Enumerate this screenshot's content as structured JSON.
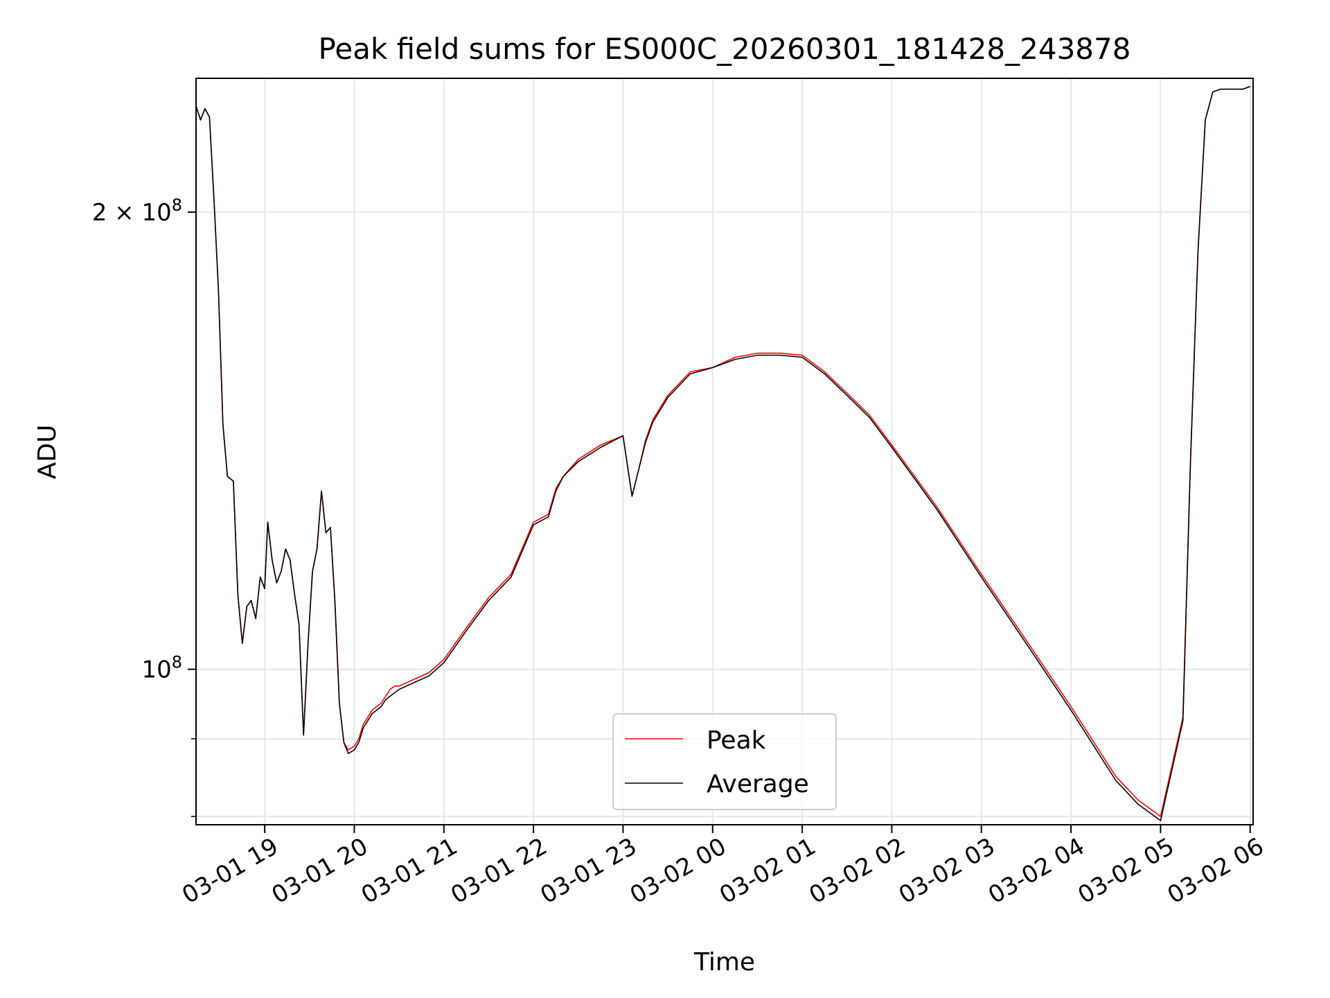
{
  "chart_data": {
    "type": "line",
    "title": "Peak field sums for ES000C_20260301_181428_243878",
    "xlabel": "Time",
    "ylabel": "ADU",
    "y_scale": "log",
    "ylim": [
      79000000,
      245000000
    ],
    "xlim": [
      "03-01 18:14",
      "03-02 06:02"
    ],
    "grid": true,
    "legend_position": "lower center",
    "x_ticks": [
      "03-01 19",
      "03-01 20",
      "03-01 21",
      "03-01 22",
      "03-01 23",
      "03-02 00",
      "03-02 01",
      "03-02 02",
      "03-02 03",
      "03-02 04",
      "03-02 05",
      "03-02 06"
    ],
    "y_ticks": [
      {
        "value": 200000000,
        "label_base": "2 × 10",
        "label_exp": "8"
      },
      {
        "value": 100000000,
        "label_base": "10",
        "label_exp": "8"
      }
    ],
    "y_minor_ticks": [
      80000000,
      90000000
    ],
    "series": [
      {
        "name": "Peak",
        "color": "#ff0000",
        "x": [
          "03-01 18:14",
          "03-01 18:17",
          "03-01 18:20",
          "03-01 18:23",
          "03-01 18:26",
          "03-01 18:29",
          "03-01 18:32",
          "03-01 18:35",
          "03-01 18:39",
          "03-01 18:42",
          "03-01 18:45",
          "03-01 18:48",
          "03-01 18:51",
          "03-01 18:54",
          "03-01 18:57",
          "03-01 19:00",
          "03-01 19:02",
          "03-01 19:05",
          "03-01 19:08",
          "03-01 19:11",
          "03-01 19:14",
          "03-01 19:17",
          "03-01 19:20",
          "03-01 19:23",
          "03-01 19:26",
          "03-01 19:29",
          "03-01 19:32",
          "03-01 19:35",
          "03-01 19:38",
          "03-01 19:41",
          "03-01 19:44",
          "03-01 19:47",
          "03-01 19:50",
          "03-01 19:53",
          "03-01 19:56",
          "03-01 20:00",
          "03-01 20:03",
          "03-01 20:06",
          "03-01 20:09",
          "03-01 20:12",
          "03-01 20:15",
          "03-01 20:18",
          "03-01 20:21",
          "03-01 20:24",
          "03-01 20:27",
          "03-01 20:30",
          "03-01 20:40",
          "03-01 20:50",
          "03-01 21:00",
          "03-01 21:15",
          "03-01 21:30",
          "03-01 21:45",
          "03-01 22:00",
          "03-01 22:10",
          "03-01 22:15",
          "03-01 22:20",
          "03-01 22:30",
          "03-01 22:45",
          "03-01 23:00",
          "03-01 23:06",
          "03-01 23:11",
          "03-01 23:15",
          "03-01 23:20",
          "03-01 23:30",
          "03-01 23:45",
          "03-02 00:00",
          "03-02 00:15",
          "03-02 00:30",
          "03-02 00:45",
          "03-02 01:00",
          "03-02 01:15",
          "03-02 01:30",
          "03-02 01:45",
          "03-02 02:00",
          "03-02 02:30",
          "03-02 03:00",
          "03-02 03:30",
          "03-02 04:00",
          "03-02 04:30",
          "03-02 04:45",
          "03-02 05:00",
          "03-02 05:15",
          "03-02 05:20",
          "03-02 05:25",
          "03-02 05:30",
          "03-02 05:35",
          "03-02 05:40",
          "03-02 05:45",
          "03-02 05:50",
          "03-02 05:55",
          "03-02 06:00"
        ],
        "y": [
          235000000,
          230000000,
          234000000,
          231000000,
          204000000,
          178000000,
          145000000,
          134000000,
          133000000,
          112000000,
          104000000,
          110000000,
          111000000,
          108000000,
          115000000,
          113000000,
          125000000,
          118000000,
          114000000,
          116000000,
          120000000,
          118000000,
          112000000,
          107000000,
          90500000,
          104000000,
          116000000,
          120000000,
          131000000,
          123000000,
          124000000,
          111000000,
          95000000,
          89500000,
          88500000,
          89000000,
          90000000,
          92000000,
          93000000,
          94000000,
          94500000,
          95000000,
          96000000,
          97000000,
          97500000,
          97500000,
          98500000,
          99500000,
          101500000,
          106500000,
          111500000,
          115500000,
          125000000,
          126500000,
          131500000,
          134000000,
          137500000,
          140500000,
          142500000,
          130000000,
          136000000,
          141500000,
          146000000,
          151500000,
          157000000,
          158000000,
          160500000,
          161500000,
          161500000,
          161000000,
          157000000,
          152000000,
          147000000,
          140500000,
          128000000,
          115500000,
          104500000,
          94500000,
          85000000,
          82000000,
          80000000,
          93000000,
          137000000,
          188000000,
          230000000,
          240000000,
          241000000,
          241000000,
          241000000,
          241000000,
          242000000
        ]
      },
      {
        "name": "Average",
        "color": "#000000",
        "x": [
          "03-01 18:14",
          "03-01 18:17",
          "03-01 18:20",
          "03-01 18:23",
          "03-01 18:26",
          "03-01 18:29",
          "03-01 18:32",
          "03-01 18:35",
          "03-01 18:39",
          "03-01 18:42",
          "03-01 18:45",
          "03-01 18:48",
          "03-01 18:51",
          "03-01 18:54",
          "03-01 18:57",
          "03-01 19:00",
          "03-01 19:02",
          "03-01 19:05",
          "03-01 19:08",
          "03-01 19:11",
          "03-01 19:14",
          "03-01 19:17",
          "03-01 19:20",
          "03-01 19:23",
          "03-01 19:26",
          "03-01 19:29",
          "03-01 19:32",
          "03-01 19:35",
          "03-01 19:38",
          "03-01 19:41",
          "03-01 19:44",
          "03-01 19:47",
          "03-01 19:50",
          "03-01 19:53",
          "03-01 19:56",
          "03-01 20:00",
          "03-01 20:03",
          "03-01 20:06",
          "03-01 20:09",
          "03-01 20:12",
          "03-01 20:15",
          "03-01 20:18",
          "03-01 20:21",
          "03-01 20:24",
          "03-01 20:27",
          "03-01 20:30",
          "03-01 20:40",
          "03-01 20:50",
          "03-01 21:00",
          "03-01 21:15",
          "03-01 21:30",
          "03-01 21:45",
          "03-01 22:00",
          "03-01 22:10",
          "03-01 22:15",
          "03-01 22:20",
          "03-01 22:30",
          "03-01 22:45",
          "03-01 23:00",
          "03-01 23:06",
          "03-01 23:11",
          "03-01 23:15",
          "03-01 23:20",
          "03-01 23:30",
          "03-01 23:45",
          "03-02 00:00",
          "03-02 00:15",
          "03-02 00:30",
          "03-02 00:45",
          "03-02 01:00",
          "03-02 01:15",
          "03-02 01:30",
          "03-02 01:45",
          "03-02 02:00",
          "03-02 02:30",
          "03-02 03:00",
          "03-02 03:30",
          "03-02 04:00",
          "03-02 04:30",
          "03-02 04:45",
          "03-02 05:00",
          "03-02 05:15",
          "03-02 05:20",
          "03-02 05:25",
          "03-02 05:30",
          "03-02 05:35",
          "03-02 05:40",
          "03-02 05:45",
          "03-02 05:50",
          "03-02 05:55",
          "03-02 06:00"
        ],
        "y": [
          235000000,
          230000000,
          234000000,
          231000000,
          204000000,
          178000000,
          145000000,
          134000000,
          133000000,
          112000000,
          104000000,
          110000000,
          111000000,
          108000000,
          115000000,
          113000000,
          125000000,
          118000000,
          114000000,
          116000000,
          120000000,
          118000000,
          112000000,
          107000000,
          90500000,
          104000000,
          116000000,
          120000000,
          131000000,
          123000000,
          124000000,
          111000000,
          95000000,
          89500000,
          88000000,
          88500000,
          89500000,
          91500000,
          92500000,
          93500000,
          94000000,
          94500000,
          95500000,
          96000000,
          96500000,
          97000000,
          98000000,
          99000000,
          101000000,
          106000000,
          111000000,
          115000000,
          124500000,
          126000000,
          131000000,
          134000000,
          137000000,
          140000000,
          142500000,
          130000000,
          136000000,
          141000000,
          145500000,
          151000000,
          156500000,
          158000000,
          160000000,
          161000000,
          161000000,
          160500000,
          156500000,
          151500000,
          146500000,
          140000000,
          127500000,
          115000000,
          104000000,
          94000000,
          84500000,
          81500000,
          79500000,
          92500000,
          136500000,
          188000000,
          230000000,
          240000000,
          241000000,
          241000000,
          241000000,
          241000000,
          242000000
        ]
      }
    ]
  }
}
